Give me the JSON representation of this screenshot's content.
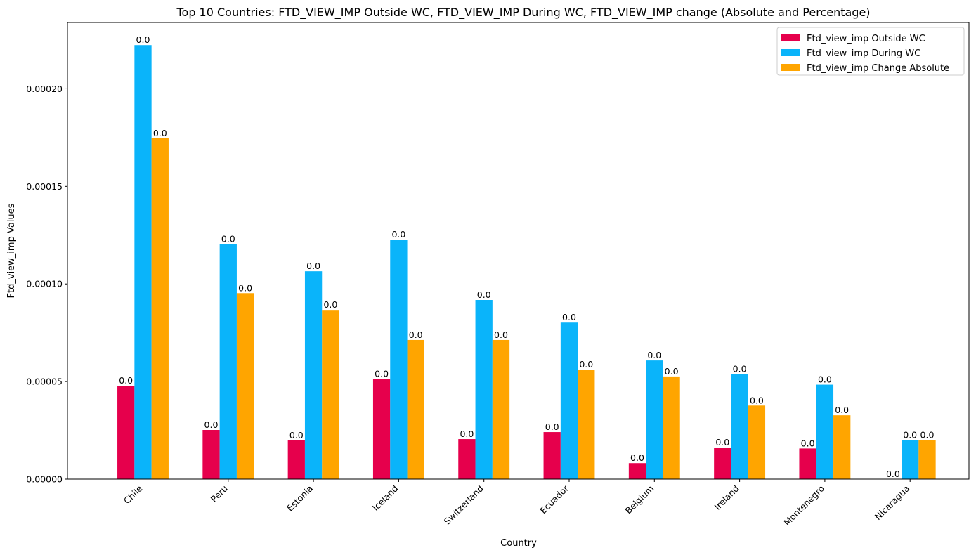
{
  "chart_data": {
    "type": "bar",
    "title": "Top 10 Countries: FTD_VIEW_IMP Outside WC, FTD_VIEW_IMP During WC, FTD_VIEW_IMP change (Absolute and Percentage)",
    "xlabel": "Country",
    "ylabel": "Ftd_view_imp Values",
    "categories": [
      "Chile",
      "Peru",
      "Estonia",
      "Iceland",
      "Switzerland",
      "Ecuador",
      "Belgium",
      "Ireland",
      "Montenegro",
      "Nicaragua"
    ],
    "series": [
      {
        "name": "Ftd_view_imp Outside WC",
        "color": "#e6004c",
        "values": [
          4.78e-05,
          2.52e-05,
          1.98e-05,
          5.13e-05,
          2.05e-05,
          2.41e-05,
          8.2e-06,
          1.62e-05,
          1.57e-05,
          0.0
        ],
        "labels": [
          "0.0",
          "0.0",
          "0.0",
          "0.0",
          "0.0",
          "0.0",
          "0.0",
          "0.0",
          "0.0",
          "0.0"
        ]
      },
      {
        "name": "Ftd_view_imp During WC",
        "color": "#0ab4fa",
        "values": [
          0.0002224,
          0.0001205,
          0.0001065,
          0.0001227,
          9.18e-05,
          8.02e-05,
          6.08e-05,
          5.39e-05,
          4.84e-05,
          2e-05
        ],
        "labels": [
          "0.0",
          "0.0",
          "0.0",
          "0.0",
          "0.0",
          "0.0",
          "0.0",
          "0.0",
          "0.0",
          "0.0"
        ]
      },
      {
        "name": "Ftd_view_imp Change Absolute",
        "color": "#ffa500",
        "values": [
          0.0001746,
          9.53e-05,
          8.67e-05,
          7.13e-05,
          7.13e-05,
          5.61e-05,
          5.26e-05,
          3.77e-05,
          3.27e-05,
          2e-05
        ],
        "labels": [
          "0.0",
          "0.0",
          "0.0",
          "0.0",
          "0.0",
          "0.0",
          "0.0",
          "0.0",
          "0.0",
          "0.0"
        ]
      }
    ],
    "ylim": [
      0,
      0.000234
    ],
    "yticks": [
      0,
      5e-05,
      0.0001,
      0.00015,
      0.0002
    ],
    "ytick_labels": [
      "0.00000",
      "0.00005",
      "0.00010",
      "0.00015",
      "0.00020"
    ],
    "grid": false,
    "legend_position": "top-right"
  }
}
